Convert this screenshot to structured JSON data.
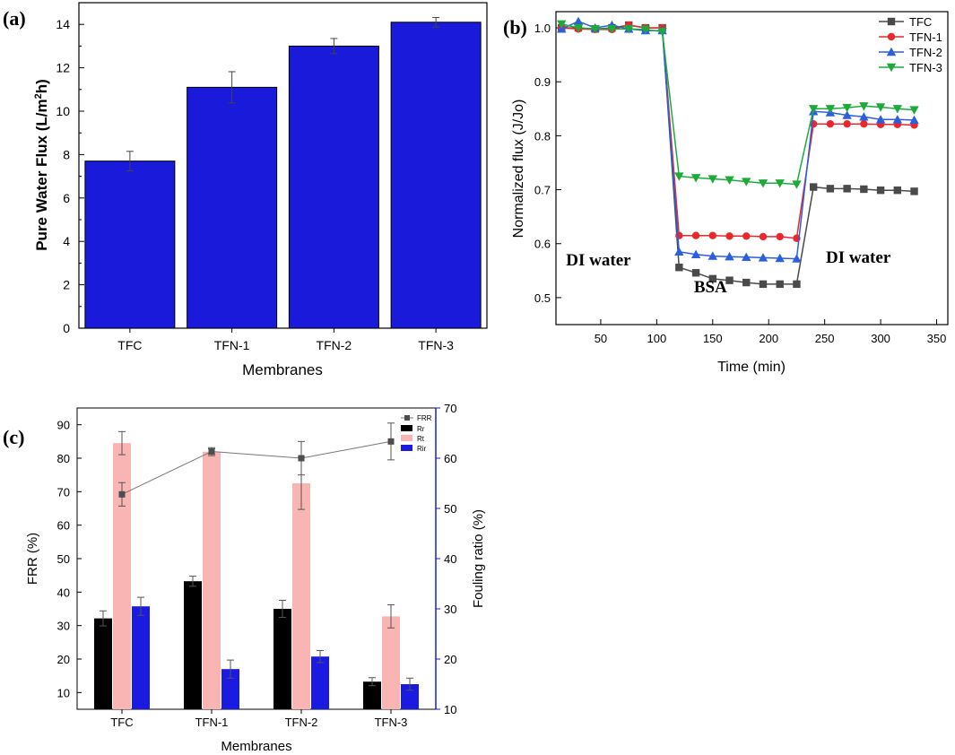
{
  "chart_data": [
    {
      "id": "a",
      "panel_label": "(a)",
      "type": "bar",
      "categories": [
        "TFC",
        "TFN-1",
        "TFN-2",
        "TFN-3"
      ],
      "values": [
        7.7,
        11.1,
        13.0,
        14.1
      ],
      "errors": [
        0.45,
        0.72,
        0.35,
        0.22
      ],
      "xlabel": "Membranes",
      "ylabel_parts": [
        "Pure Water Flux (L/m",
        "2",
        "h)"
      ],
      "ylim": [
        0,
        15
      ],
      "yticks": [
        0,
        2,
        4,
        6,
        8,
        10,
        12,
        14
      ],
      "bar_color": "#1a1adb"
    },
    {
      "id": "b",
      "panel_label": "(b)",
      "type": "line",
      "xlabel": "Time (min)",
      "ylabel": "Normalized flux (J/Jo)",
      "xlim": [
        10,
        360
      ],
      "ylim": [
        0.45,
        1.03
      ],
      "xticks": [
        50,
        100,
        150,
        200,
        250,
        300,
        350
      ],
      "yticks": [
        0.5,
        0.6,
        0.7,
        0.8,
        0.9,
        1.0
      ],
      "ytick_labels": [
        "0.5",
        "0.6",
        "0.7",
        "0.8",
        "0.9",
        "1.0"
      ],
      "series": [
        {
          "name": "TFC",
          "color": "#4a4a4a",
          "marker": "square",
          "x": [
            15,
            30,
            45,
            60,
            75,
            90,
            105,
            120,
            135,
            150,
            165,
            180,
            195,
            210,
            225,
            240,
            255,
            270,
            285,
            300,
            315,
            330
          ],
          "y": [
            1.0,
            1.0,
            0.998,
            1.0,
            1.005,
            1.0,
            1.0,
            0.556,
            0.546,
            0.535,
            0.532,
            0.528,
            0.525,
            0.525,
            0.525,
            0.705,
            0.702,
            0.702,
            0.701,
            0.699,
            0.699,
            0.697
          ]
        },
        {
          "name": "TFN-1",
          "color": "#e8282c",
          "marker": "circle",
          "x": [
            15,
            30,
            45,
            60,
            75,
            90,
            105,
            120,
            135,
            150,
            165,
            180,
            195,
            210,
            225,
            240,
            255,
            270,
            285,
            300,
            315,
            330
          ],
          "y": [
            1.0,
            0.998,
            0.997,
            0.997,
            1.005,
            1.0,
            1.0,
            0.615,
            0.615,
            0.615,
            0.614,
            0.614,
            0.613,
            0.613,
            0.61,
            0.822,
            0.822,
            0.822,
            0.822,
            0.821,
            0.821,
            0.82
          ]
        },
        {
          "name": "TFN-2",
          "color": "#2b5fe0",
          "marker": "triangle-up",
          "x": [
            15,
            30,
            45,
            60,
            75,
            90,
            105,
            120,
            135,
            150,
            165,
            180,
            195,
            210,
            225,
            240,
            255,
            270,
            285,
            300,
            315,
            330
          ],
          "y": [
            0.998,
            1.012,
            1.0,
            1.005,
            0.998,
            0.995,
            0.995,
            0.585,
            0.58,
            0.577,
            0.576,
            0.575,
            0.574,
            0.573,
            0.572,
            0.845,
            0.843,
            0.838,
            0.835,
            0.83,
            0.83,
            0.829
          ]
        },
        {
          "name": "TFN-3",
          "color": "#1daa3b",
          "marker": "triangle-down",
          "x": [
            15,
            30,
            45,
            60,
            75,
            90,
            105,
            120,
            135,
            150,
            165,
            180,
            195,
            210,
            225,
            240,
            255,
            270,
            285,
            300,
            315,
            330
          ],
          "y": [
            1.007,
            1.0,
            0.998,
            0.998,
            0.998,
            0.997,
            0.993,
            0.725,
            0.722,
            0.72,
            0.718,
            0.715,
            0.712,
            0.712,
            0.71,
            0.85,
            0.85,
            0.852,
            0.855,
            0.853,
            0.85,
            0.848
          ]
        }
      ],
      "annotations": [
        {
          "text": "DI water",
          "x": 48,
          "y": 0.56
        },
        {
          "text": "BSA",
          "x": 148,
          "y": 0.51
        },
        {
          "text": "DI water",
          "x": 280,
          "y": 0.565
        }
      ]
    },
    {
      "id": "c",
      "panel_label": "(c)",
      "type": "bar",
      "categories": [
        "TFC",
        "TFN-1",
        "TFN-2",
        "TFN-3"
      ],
      "xlabel": "Membranes",
      "ylabel": "FRR (%)",
      "y2label": "Fouling ratio (%)",
      "ylim": [
        5,
        95
      ],
      "yticks": [
        10,
        20,
        30,
        40,
        50,
        60,
        70,
        80,
        90
      ],
      "y2lim": [
        10,
        70
      ],
      "y2ticks": [
        10,
        20,
        30,
        40,
        50,
        60,
        70
      ],
      "bar_series": [
        {
          "name": "Rr",
          "color": "#000000",
          "values": [
            28.1,
            35.5,
            30.0,
            15.5
          ],
          "errors": [
            1.5,
            1.0,
            1.7,
            0.8
          ]
        },
        {
          "name": "Rt",
          "color": "#f9b4b4",
          "values": [
            63.0,
            61.3,
            55.0,
            28.5
          ],
          "errors": [
            2.3,
            0.8,
            5.2,
            2.3
          ]
        },
        {
          "name": "Rir",
          "color": "#1a1ae0",
          "values": [
            30.5,
            18.0,
            20.5,
            15.0
          ],
          "errors": [
            1.8,
            1.8,
            1.2,
            1.2
          ]
        }
      ],
      "line_series": {
        "name": "FRR",
        "color": "#4d4d4d",
        "values": [
          69.2,
          82.0,
          80.0,
          85.0
        ],
        "errors": [
          3.5,
          0.8,
          5.0,
          5.5
        ]
      }
    }
  ]
}
